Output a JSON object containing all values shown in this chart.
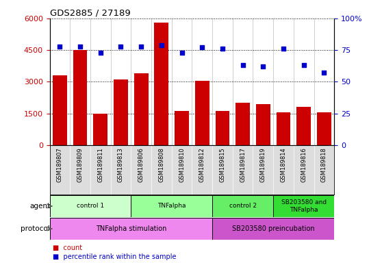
{
  "title": "GDS2885 / 27189",
  "samples": [
    "GSM189807",
    "GSM189809",
    "GSM189811",
    "GSM189813",
    "GSM189806",
    "GSM189808",
    "GSM189810",
    "GSM189812",
    "GSM189815",
    "GSM189817",
    "GSM189819",
    "GSM189814",
    "GSM189816",
    "GSM189818"
  ],
  "counts": [
    3300,
    4500,
    1500,
    3100,
    3400,
    5800,
    1600,
    3050,
    1600,
    2000,
    1950,
    1550,
    1800,
    1550
  ],
  "percentiles": [
    78,
    78,
    73,
    78,
    78,
    79,
    73,
    77,
    76,
    63,
    62,
    76,
    63,
    57
  ],
  "ylim_left": [
    0,
    6000
  ],
  "ylim_right": [
    0,
    100
  ],
  "yticks_left": [
    0,
    1500,
    3000,
    4500,
    6000
  ],
  "yticks_right": [
    0,
    25,
    50,
    75,
    100
  ],
  "bar_color": "#cc0000",
  "dot_color": "#0000cc",
  "agent_groups": [
    {
      "label": "control 1",
      "start": 0,
      "end": 4,
      "color": "#ccffcc"
    },
    {
      "label": "TNFalpha",
      "start": 4,
      "end": 8,
      "color": "#99ff99"
    },
    {
      "label": "control 2",
      "start": 8,
      "end": 11,
      "color": "#66ee66"
    },
    {
      "label": "SB203580 and\nTNFalpha",
      "start": 11,
      "end": 14,
      "color": "#33dd33"
    }
  ],
  "protocol_groups": [
    {
      "label": "TNFalpha stimulation",
      "start": 0,
      "end": 8,
      "color": "#ee88ee"
    },
    {
      "label": "SB203580 preincubation",
      "start": 8,
      "end": 14,
      "color": "#cc55cc"
    }
  ],
  "sample_bg_color": "#dddddd",
  "left_tick_color": "#cc0000",
  "right_tick_color": "#0000cc"
}
